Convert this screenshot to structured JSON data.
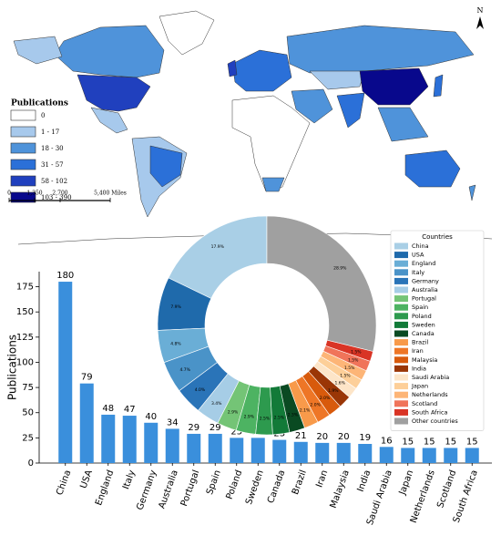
{
  "chart_data": [
    {
      "type": "choropleth-map",
      "legend_title": "Publications",
      "classes": [
        {
          "label": "0",
          "color": "#ffffff"
        },
        {
          "label": "1 - 17",
          "color": "#a7c9ec"
        },
        {
          "label": "18 - 30",
          "color": "#4f93da"
        },
        {
          "label": "31 - 57",
          "color": "#2b70d8"
        },
        {
          "label": "58 - 102",
          "color": "#2040be"
        },
        {
          "label": "103 - 390",
          "color": "#08088c"
        }
      ],
      "scale_labels": [
        "0",
        "1,350",
        "2,700",
        "5,400 Miles"
      ],
      "north": "N"
    },
    {
      "type": "bar",
      "ylabel": "Publications",
      "color": "#3a8fdc",
      "categories": [
        "China",
        "USA",
        "England",
        "Italy",
        "Germany",
        "Australia",
        "Portugal",
        "Spain",
        "Poland",
        "Sweden",
        "Canada",
        "Brazil",
        "Iran",
        "Malaysia",
        "India",
        "Saudi Arabia",
        "Japan",
        "Netherlands",
        "Scotland",
        "South Africa"
      ],
      "values": [
        180,
        79,
        48,
        47,
        40,
        34,
        29,
        29,
        25,
        25,
        23,
        21,
        20,
        20,
        19,
        16,
        15,
        15,
        15,
        15
      ],
      "ylim": [
        0,
        190
      ],
      "yticks": [
        0,
        25,
        50,
        75,
        100,
        125,
        150,
        175
      ]
    },
    {
      "type": "pie",
      "legend_title": "Countries",
      "categories": [
        "China",
        "USA",
        "England",
        "Italy",
        "Germany",
        "Australia",
        "Portugal",
        "Spain",
        "Poland",
        "Sweden",
        "Canada",
        "Brazil",
        "Iran",
        "Malaysia",
        "India",
        "Saudi Arabia",
        "Japan",
        "Netherlands",
        "Scotland",
        "South Africa",
        "Other countries"
      ],
      "values": [
        17.9,
        7.9,
        4.8,
        4.7,
        4.0,
        3.4,
        2.9,
        2.9,
        2.5,
        2.5,
        2.3,
        2.1,
        2.0,
        2.0,
        1.9,
        1.6,
        1.5,
        1.5,
        1.5,
        1.5,
        28.9
      ],
      "value_labels": [
        "17.9%",
        "7.9%",
        "4.8%",
        "4.7%",
        "4.0%",
        "3.4%",
        "2.9%",
        "2.9%",
        "2.5%",
        "2.5%",
        "2.3%",
        "2.1%",
        "2.0%",
        "2.0%",
        "1.9%",
        "1.6%",
        "1.5%",
        "1.5%",
        "1.5%",
        "1.5%",
        "28.9%"
      ],
      "colors": [
        "#a9cfe6",
        "#1f6aab",
        "#6aaed6",
        "#4a93c8",
        "#2a74b8",
        "#a6cde6",
        "#74c476",
        "#4db362",
        "#2d9a4e",
        "#127a38",
        "#0a4a22",
        "#f89a4a",
        "#ee7626",
        "#d85a0c",
        "#9a3606",
        "#fde5c8",
        "#fdcf99",
        "#fdb577",
        "#f0745a",
        "#d93425",
        "#a0a0a0"
      ]
    }
  ]
}
